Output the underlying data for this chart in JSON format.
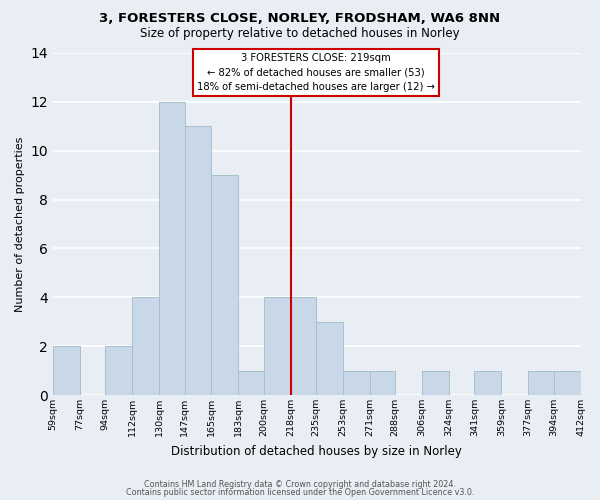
{
  "title1": "3, FORESTERS CLOSE, NORLEY, FRODSHAM, WA6 8NN",
  "title2": "Size of property relative to detached houses in Norley",
  "xlabel": "Distribution of detached houses by size in Norley",
  "ylabel": "Number of detached properties",
  "bar_edges": [
    59,
    77,
    94,
    112,
    130,
    147,
    165,
    183,
    200,
    218,
    235,
    253,
    271,
    288,
    306,
    324,
    341,
    359,
    377,
    394,
    412
  ],
  "bar_heights": [
    2,
    0,
    2,
    4,
    12,
    11,
    9,
    1,
    4,
    4,
    3,
    1,
    1,
    0,
    1,
    0,
    1,
    0,
    1,
    1
  ],
  "tick_labels": [
    "59sqm",
    "77sqm",
    "94sqm",
    "112sqm",
    "130sqm",
    "147sqm",
    "165sqm",
    "183sqm",
    "200sqm",
    "218sqm",
    "235sqm",
    "253sqm",
    "271sqm",
    "288sqm",
    "306sqm",
    "324sqm",
    "341sqm",
    "359sqm",
    "377sqm",
    "394sqm",
    "412sqm"
  ],
  "bar_color": "#c8d8e8",
  "bar_edgecolor": "#a8bfcc",
  "vline_x": 218,
  "vline_color": "#cc0000",
  "annotation_title": "3 FORESTERS CLOSE: 219sqm",
  "annotation_line1": "← 82% of detached houses are smaller (53)",
  "annotation_line2": "18% of semi-detached houses are larger (12) →",
  "annotation_box_color": "#ffffff",
  "annotation_box_edgecolor": "#cc0000",
  "ylim": [
    0,
    14
  ],
  "yticks": [
    0,
    2,
    4,
    6,
    8,
    10,
    12,
    14
  ],
  "footer1": "Contains HM Land Registry data © Crown copyright and database right 2024.",
  "footer2": "Contains public sector information licensed under the Open Government Licence v3.0.",
  "bg_color": "#e8eef4"
}
